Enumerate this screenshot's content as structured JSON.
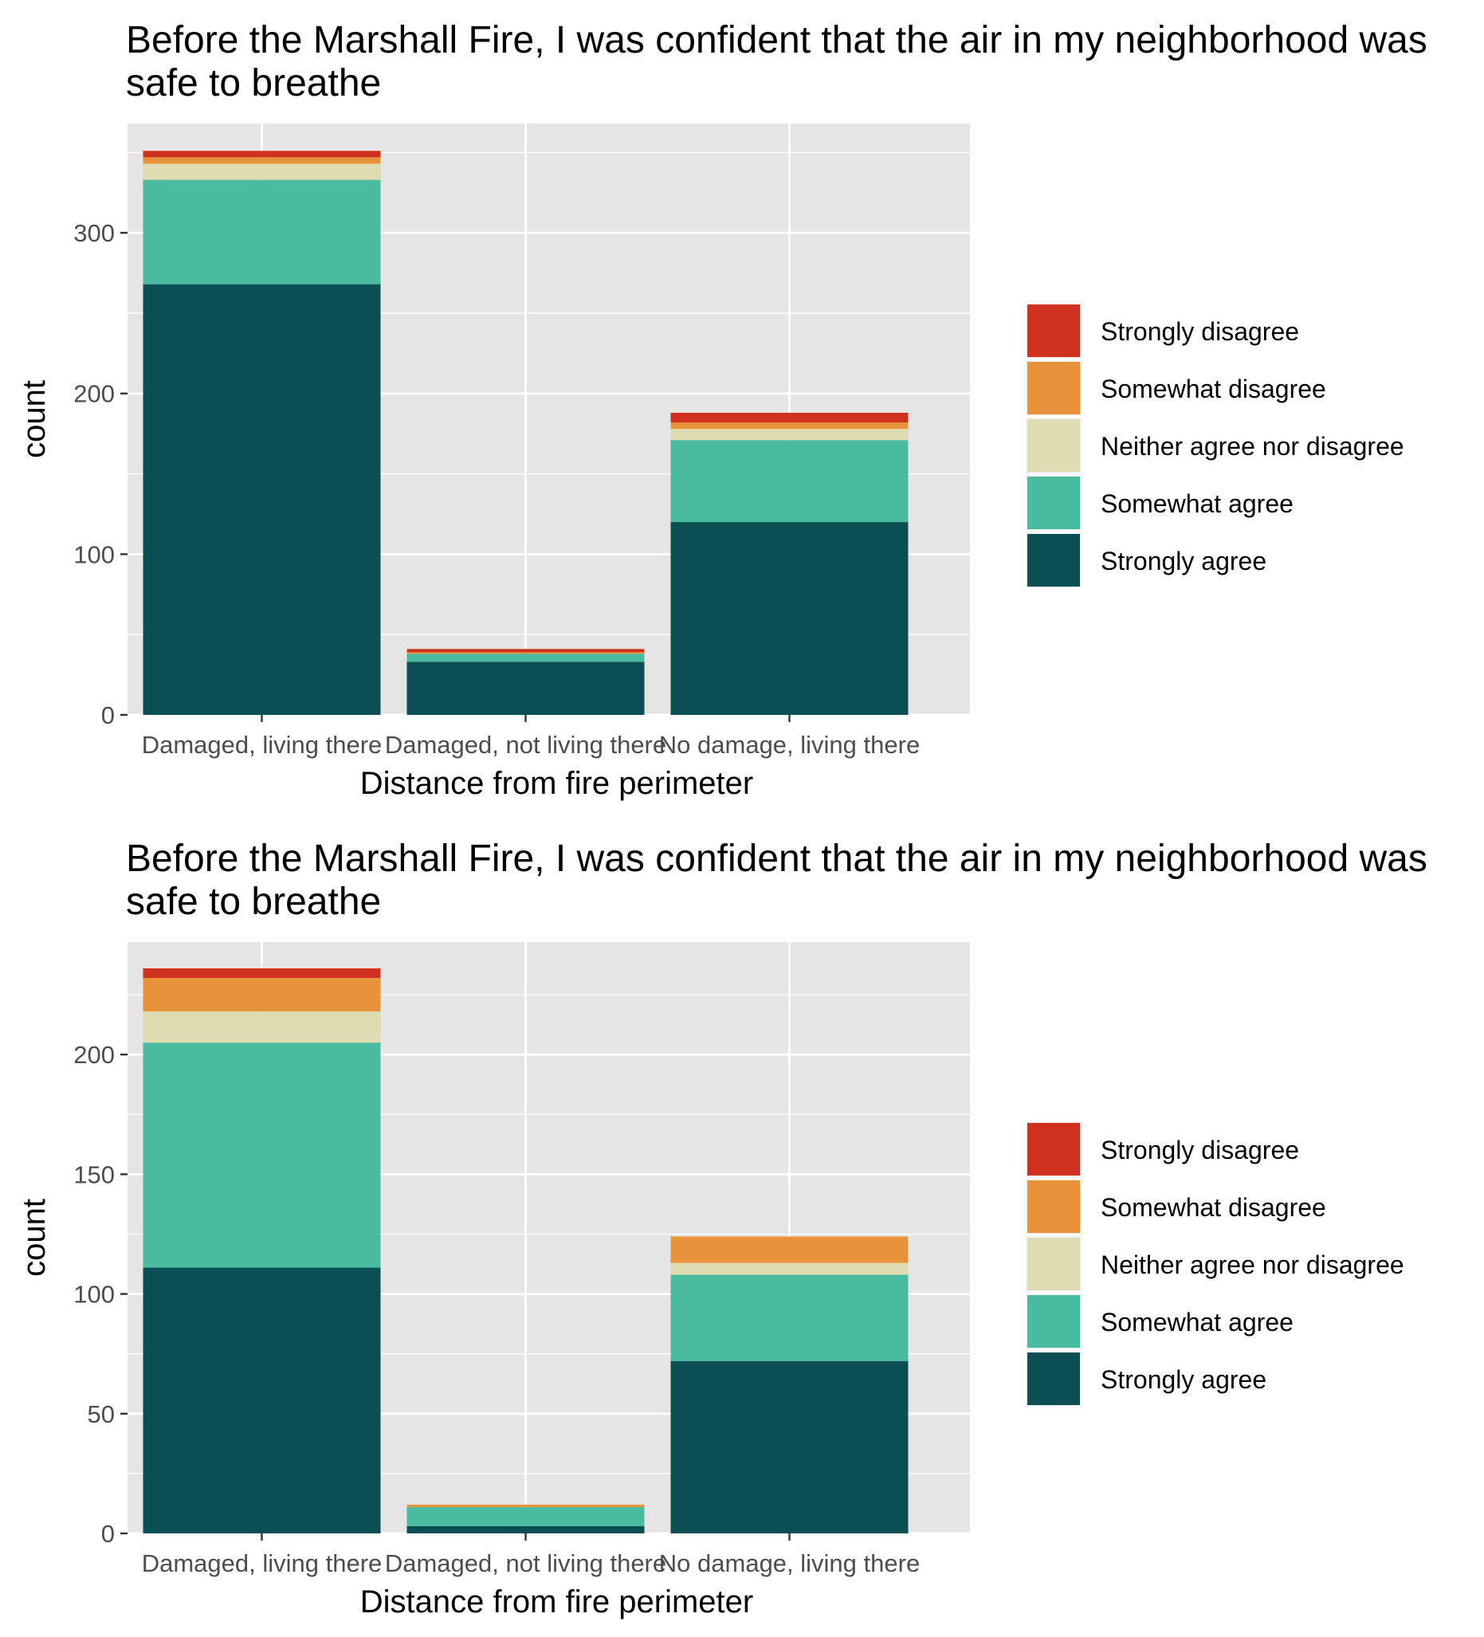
{
  "colors": {
    "panel_bg": "#e5e5e5",
    "grid": "#ffffff",
    "tick": "#333333"
  },
  "chart_data": [
    {
      "type": "bar",
      "stacked": true,
      "title_lines": [
        "Before the Marshall Fire, I was confident that the air in my neighborhood was",
        " safe to breathe"
      ],
      "xlabel": "Distance from fire perimeter",
      "ylabel": "count",
      "ylim": [
        0,
        368
      ],
      "yticks": [
        0,
        100,
        200,
        300
      ],
      "categories": [
        "Damaged, living there",
        "Damaged, not living there",
        "No damage, living there"
      ],
      "legend_position": "right",
      "series": [
        {
          "name": "Strongly agree",
          "color": "#0b4f55",
          "values": [
            268,
            33,
            120
          ]
        },
        {
          "name": "Somewhat agree",
          "color": "#4abb9e",
          "values": [
            65,
            5,
            51
          ]
        },
        {
          "name": "Neither agree nor disagree",
          "color": "#dfdcb2",
          "values": [
            10,
            0,
            7
          ]
        },
        {
          "name": "Somewhat disagree",
          "color": "#e8933a",
          "values": [
            4,
            1,
            4
          ]
        },
        {
          "name": "Strongly disagree",
          "color": "#d0301e",
          "values": [
            4,
            2,
            6
          ]
        }
      ]
    },
    {
      "type": "bar",
      "stacked": true,
      "title_lines": [
        "Before the Marshall Fire, I was confident that the air in my neighborhood was",
        " safe to breathe"
      ],
      "xlabel": "Distance from fire perimeter",
      "ylabel": "count",
      "ylim": [
        0,
        247
      ],
      "yticks": [
        0,
        50,
        100,
        150,
        200
      ],
      "categories": [
        "Damaged, living there",
        "Damaged, not living there",
        "No damage, living there"
      ],
      "legend_position": "right",
      "series": [
        {
          "name": "Strongly agree",
          "color": "#0b4f55",
          "values": [
            111,
            3,
            72
          ]
        },
        {
          "name": "Somewhat agree",
          "color": "#4abb9e",
          "values": [
            94,
            8,
            36
          ]
        },
        {
          "name": "Neither agree nor disagree",
          "color": "#dfdcb2",
          "values": [
            13,
            0,
            5
          ]
        },
        {
          "name": "Somewhat disagree",
          "color": "#e8933a",
          "values": [
            14,
            1,
            11
          ]
        },
        {
          "name": "Strongly disagree",
          "color": "#d0301e",
          "values": [
            4,
            0,
            0
          ]
        }
      ]
    }
  ]
}
